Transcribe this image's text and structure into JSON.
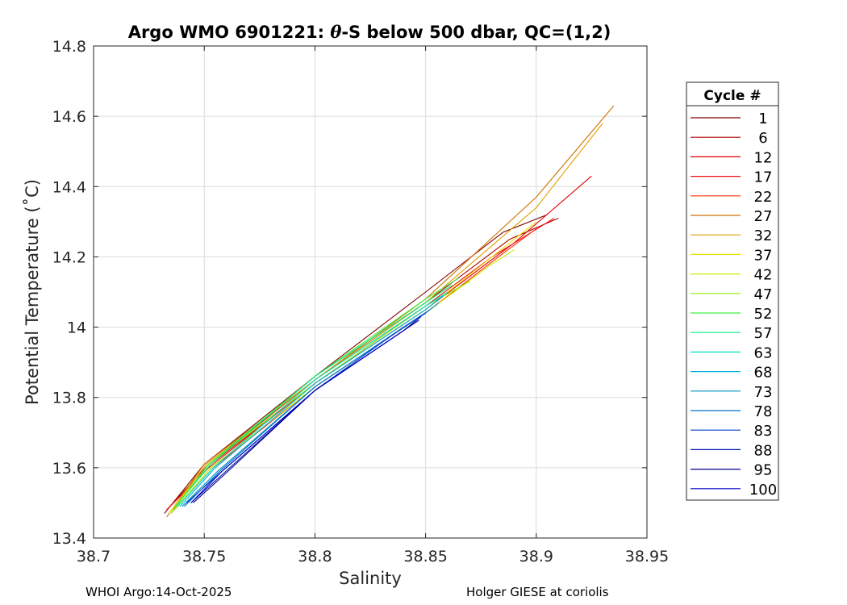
{
  "chart_data": {
    "type": "line",
    "title_prefix": "Argo WMO 6901221: ",
    "title_theta": "θ",
    "title_suffix": "-S below 500 dbar,  QC=(1,2)",
    "xlabel": "Salinity",
    "ylabel": "Potential Temperature (˚C)",
    "xlim": [
      38.7,
      38.95
    ],
    "ylim": [
      13.4,
      14.8
    ],
    "xticks": [
      "38.7",
      "38.75",
      "38.8",
      "38.85",
      "38.9",
      "38.95"
    ],
    "yticks": [
      "13.4",
      "13.6",
      "13.8",
      "14",
      "14.2",
      "14.4",
      "14.6",
      "14.8"
    ],
    "grid": true,
    "legend": {
      "title": "Cycle #",
      "placement": "right-outside",
      "entries": [
        {
          "label": "1",
          "color": "#800000"
        },
        {
          "label": "6",
          "color": "#b00000"
        },
        {
          "label": "12",
          "color": "#e00000"
        },
        {
          "label": "17",
          "color": "#f01010"
        },
        {
          "label": "22",
          "color": "#ff3000"
        },
        {
          "label": "27",
          "color": "#d07000"
        },
        {
          "label": "32",
          "color": "#e0a000"
        },
        {
          "label": "37",
          "color": "#f0e000"
        },
        {
          "label": "42",
          "color": "#c8f000"
        },
        {
          "label": "47",
          "color": "#90f000"
        },
        {
          "label": "52",
          "color": "#40f040"
        },
        {
          "label": "57",
          "color": "#00f080"
        },
        {
          "label": "63",
          "color": "#00e0c0"
        },
        {
          "label": "68",
          "color": "#00b0e0"
        },
        {
          "label": "73",
          "color": "#0090c0"
        },
        {
          "label": "78",
          "color": "#0070d0"
        },
        {
          "label": "83",
          "color": "#0040d0"
        },
        {
          "label": "88",
          "color": "#0010b0"
        },
        {
          "label": "95",
          "color": "#000090"
        },
        {
          "label": "100",
          "color": "#0000c0"
        }
      ]
    },
    "series": [
      {
        "cycle": "1",
        "color": "#800000",
        "points": [
          [
            38.732,
            13.47
          ],
          [
            38.75,
            13.61
          ],
          [
            38.8,
            13.86
          ],
          [
            38.85,
            14.1
          ],
          [
            38.885,
            14.27
          ],
          [
            38.905,
            14.32
          ]
        ]
      },
      {
        "cycle": "6",
        "color": "#b00000",
        "points": [
          [
            38.733,
            13.48
          ],
          [
            38.752,
            13.61
          ],
          [
            38.8,
            13.85
          ],
          [
            38.85,
            14.07
          ],
          [
            38.888,
            14.25
          ],
          [
            38.91,
            14.31
          ]
        ]
      },
      {
        "cycle": "12",
        "color": "#e00000",
        "points": [
          [
            38.734,
            13.47
          ],
          [
            38.753,
            13.61
          ],
          [
            38.8,
            13.84
          ],
          [
            38.85,
            14.05
          ],
          [
            38.89,
            14.24
          ],
          [
            38.925,
            14.43
          ]
        ]
      },
      {
        "cycle": "17",
        "color": "#f01010",
        "points": [
          [
            38.733,
            13.48
          ],
          [
            38.752,
            13.6
          ],
          [
            38.8,
            13.84
          ],
          [
            38.85,
            14.06
          ],
          [
            38.88,
            14.2
          ],
          [
            38.908,
            14.31
          ]
        ]
      },
      {
        "cycle": "22",
        "color": "#ff3000",
        "points": [
          [
            38.735,
            13.47
          ],
          [
            38.754,
            13.6
          ],
          [
            38.8,
            13.83
          ],
          [
            38.85,
            14.04
          ],
          [
            38.885,
            14.21
          ],
          [
            38.9,
            14.28
          ]
        ]
      },
      {
        "cycle": "27",
        "color": "#d07000",
        "points": [
          [
            38.733,
            13.46
          ],
          [
            38.75,
            13.61
          ],
          [
            38.8,
            13.85
          ],
          [
            38.85,
            14.08
          ],
          [
            38.9,
            14.37
          ],
          [
            38.935,
            14.63
          ]
        ]
      },
      {
        "cycle": "32",
        "color": "#e0a000",
        "points": [
          [
            38.734,
            13.47
          ],
          [
            38.751,
            13.61
          ],
          [
            38.8,
            13.85
          ],
          [
            38.85,
            14.07
          ],
          [
            38.9,
            14.34
          ],
          [
            38.93,
            14.58
          ]
        ]
      },
      {
        "cycle": "37",
        "color": "#f0e000",
        "points": [
          [
            38.734,
            13.47
          ],
          [
            38.752,
            13.61
          ],
          [
            38.8,
            13.84
          ],
          [
            38.85,
            14.05
          ],
          [
            38.88,
            14.2
          ],
          [
            38.9,
            14.3
          ]
        ]
      },
      {
        "cycle": "42",
        "color": "#c8f000",
        "points": [
          [
            38.735,
            13.47
          ],
          [
            38.753,
            13.6
          ],
          [
            38.8,
            13.83
          ],
          [
            38.85,
            14.04
          ],
          [
            38.88,
            14.18
          ],
          [
            38.89,
            14.22
          ]
        ]
      },
      {
        "cycle": "47",
        "color": "#90f000",
        "points": [
          [
            38.735,
            13.47
          ],
          [
            38.752,
            13.61
          ],
          [
            38.8,
            13.84
          ],
          [
            38.85,
            14.06
          ],
          [
            38.87,
            14.13
          ]
        ]
      },
      {
        "cycle": "52",
        "color": "#40f040",
        "points": [
          [
            38.736,
            13.48
          ],
          [
            38.752,
            13.61
          ],
          [
            38.8,
            13.86
          ],
          [
            38.85,
            14.08
          ],
          [
            38.865,
            14.14
          ]
        ]
      },
      {
        "cycle": "57",
        "color": "#00f080",
        "points": [
          [
            38.737,
            13.49
          ],
          [
            38.753,
            13.61
          ],
          [
            38.8,
            13.86
          ],
          [
            38.85,
            14.07
          ],
          [
            38.862,
            14.12
          ]
        ]
      },
      {
        "cycle": "63",
        "color": "#00e0c0",
        "points": [
          [
            38.738,
            13.49
          ],
          [
            38.754,
            13.6
          ],
          [
            38.8,
            13.85
          ],
          [
            38.85,
            14.06
          ],
          [
            38.86,
            14.1
          ]
        ]
      },
      {
        "cycle": "68",
        "color": "#00b0e0",
        "points": [
          [
            38.739,
            13.49
          ],
          [
            38.755,
            13.6
          ],
          [
            38.8,
            13.84
          ],
          [
            38.85,
            14.05
          ],
          [
            38.858,
            14.09
          ]
        ]
      },
      {
        "cycle": "73",
        "color": "#0090c0",
        "points": [
          [
            38.74,
            13.49
          ],
          [
            38.756,
            13.59
          ],
          [
            38.8,
            13.83
          ],
          [
            38.85,
            14.04
          ],
          [
            38.856,
            14.07
          ]
        ]
      },
      {
        "cycle": "78",
        "color": "#0070d0",
        "points": [
          [
            38.741,
            13.49
          ],
          [
            38.757,
            13.59
          ],
          [
            38.8,
            13.83
          ],
          [
            38.84,
            14.0
          ],
          [
            38.852,
            14.05
          ]
        ]
      },
      {
        "cycle": "83",
        "color": "#0040d0",
        "points": [
          [
            38.742,
            13.5
          ],
          [
            38.758,
            13.59
          ],
          [
            38.8,
            13.82
          ],
          [
            38.84,
            14.0
          ],
          [
            38.85,
            14.04
          ]
        ]
      },
      {
        "cycle": "88",
        "color": "#0010b0",
        "points": [
          [
            38.744,
            13.5
          ],
          [
            38.758,
            13.58
          ],
          [
            38.8,
            13.82
          ],
          [
            38.84,
            13.99
          ],
          [
            38.848,
            14.03
          ]
        ]
      },
      {
        "cycle": "95",
        "color": "#000090",
        "points": [
          [
            38.745,
            13.5
          ],
          [
            38.759,
            13.58
          ],
          [
            38.8,
            13.82
          ],
          [
            38.84,
            13.99
          ],
          [
            38.847,
            14.02
          ]
        ]
      },
      {
        "cycle": "100",
        "color": "#0000c0",
        "points": [
          [
            38.744,
            13.5
          ],
          [
            38.758,
            13.59
          ],
          [
            38.8,
            13.82
          ],
          [
            38.84,
            13.99
          ],
          [
            38.846,
            14.02
          ]
        ]
      }
    ]
  },
  "footer": {
    "left": "WHOI Argo:14-Oct-2025",
    "right": "Holger GIESE at coriolis"
  }
}
